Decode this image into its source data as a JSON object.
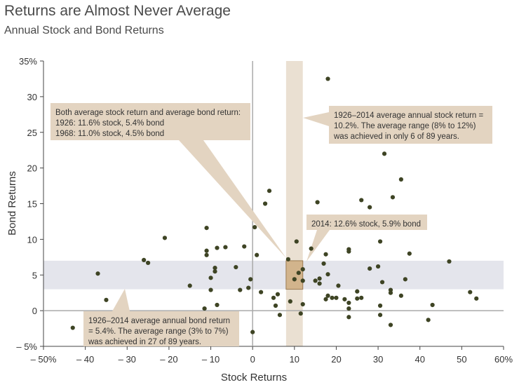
{
  "title": "Returns are Almost Never Average",
  "subtitle": "Annual Stock and Bond Returns",
  "colors": {
    "point": "#3e4424",
    "band": "#e4e5ec",
    "vband": "#eae0d2",
    "box": "#d2b48c",
    "callout": "#e3d4c1",
    "axis": "#aaaaaa"
  },
  "chart_data": {
    "type": "scatter",
    "title": "Annual Stock and Bond Returns",
    "xlabel": "Stock Returns",
    "ylabel": "Bond Returns",
    "xlim": [
      -50,
      60
    ],
    "ylim": [
      -5,
      35
    ],
    "x_ticks": [
      "– 50%",
      "– 40",
      "– 30",
      "– 20",
      "– 10",
      "0",
      "10",
      "20",
      "30",
      "40",
      "50",
      "60%"
    ],
    "y_ticks": [
      "– 5%",
      "0",
      "5",
      "10",
      "15",
      "20",
      "25",
      "30",
      "35%"
    ],
    "bond_average_band": [
      3,
      7
    ],
    "stock_average_band": [
      8,
      12
    ],
    "highlight_box": {
      "x": [
        8,
        12
      ],
      "y": [
        3,
        7
      ]
    },
    "points": [
      [
        -43,
        -2.4
      ],
      [
        -37,
        5.2
      ],
      [
        -35,
        1.5
      ],
      [
        -26,
        7.1
      ],
      [
        -25,
        6.7
      ],
      [
        -21,
        10.2
      ],
      [
        -15,
        3.5
      ],
      [
        -11.5,
        0.3
      ],
      [
        -11,
        11.6
      ],
      [
        -11,
        8.4
      ],
      [
        -11,
        7.8
      ],
      [
        -10,
        4.6
      ],
      [
        -10,
        2.9
      ],
      [
        -9,
        6
      ],
      [
        -9,
        5.5
      ],
      [
        -8.5,
        8.8
      ],
      [
        -8.5,
        0.8
      ],
      [
        -6.5,
        8.9
      ],
      [
        -4,
        6.1
      ],
      [
        -3,
        2.9
      ],
      [
        -2,
        9
      ],
      [
        -1,
        3.2
      ],
      [
        -0.5,
        4.4
      ],
      [
        0,
        -3
      ],
      [
        0.5,
        11.7
      ],
      [
        1,
        7.8
      ],
      [
        2,
        2.6
      ],
      [
        3,
        15
      ],
      [
        4,
        16.8
      ],
      [
        5,
        1.8
      ],
      [
        5.5,
        0.7
      ],
      [
        6,
        2.3
      ],
      [
        6.5,
        -0.6
      ],
      [
        8.5,
        7.2
      ],
      [
        9,
        1.3
      ],
      [
        10,
        4.4
      ],
      [
        10.5,
        9.7
      ],
      [
        11,
        5.3
      ],
      [
        11.5,
        -0.4
      ],
      [
        12,
        0.9
      ],
      [
        12,
        4.2
      ],
      [
        12,
        5.8
      ],
      [
        14,
        8.7
      ],
      [
        15,
        4.2
      ],
      [
        15.5,
        15.2
      ],
      [
        16,
        3.8
      ],
      [
        16,
        4.5
      ],
      [
        17,
        6.6
      ],
      [
        17.5,
        7.9
      ],
      [
        17.5,
        1.6
      ],
      [
        18,
        2.1
      ],
      [
        18,
        32.5
      ],
      [
        18,
        5.1
      ],
      [
        19,
        1.8
      ],
      [
        20,
        1.8
      ],
      [
        20.5,
        3.5
      ],
      [
        22,
        1.6
      ],
      [
        23,
        8.6
      ],
      [
        23,
        8.3
      ],
      [
        23,
        1.1
      ],
      [
        23,
        0.3
      ],
      [
        23,
        -0.9
      ],
      [
        25,
        1.7
      ],
      [
        25,
        2.7
      ],
      [
        26,
        15.5
      ],
      [
        26,
        1.8
      ],
      [
        28,
        14.5
      ],
      [
        28,
        5.9
      ],
      [
        30,
        6.2
      ],
      [
        30.5,
        9.7
      ],
      [
        30.5,
        0.7
      ],
      [
        30.5,
        -0.6
      ],
      [
        31,
        4
      ],
      [
        31.5,
        22
      ],
      [
        33,
        2.9
      ],
      [
        33,
        2.5
      ],
      [
        33,
        -2
      ],
      [
        33.5,
        15.9
      ],
      [
        35.5,
        2.1
      ],
      [
        35.5,
        18.4
      ],
      [
        36.5,
        4.4
      ],
      [
        37.5,
        8
      ],
      [
        42,
        -1.3
      ],
      [
        43,
        0.8
      ],
      [
        47,
        6.9
      ],
      [
        52,
        2.6
      ],
      [
        53.5,
        1.7
      ]
    ]
  },
  "annotations": {
    "average_1926_1968": [
      "Both average stock return and average bond return:",
      "1926: 11.6% stock, 5.4% bond",
      "1968: 11.0% stock, 4.5% bond"
    ],
    "stock_range": [
      "1926–2014 average annual stock return =",
      "10.2%. The average range (8% to 12%)",
      "was achieved in only 6 of 89 years."
    ],
    "year_2014": [
      "2014: 12.6% stock, 5.9% bond"
    ],
    "bond_range": [
      "1926–2014 average annual bond return",
      "= 5.4%. The average range (3% to 7%)",
      "was achieved in 27 of 89 years."
    ]
  }
}
